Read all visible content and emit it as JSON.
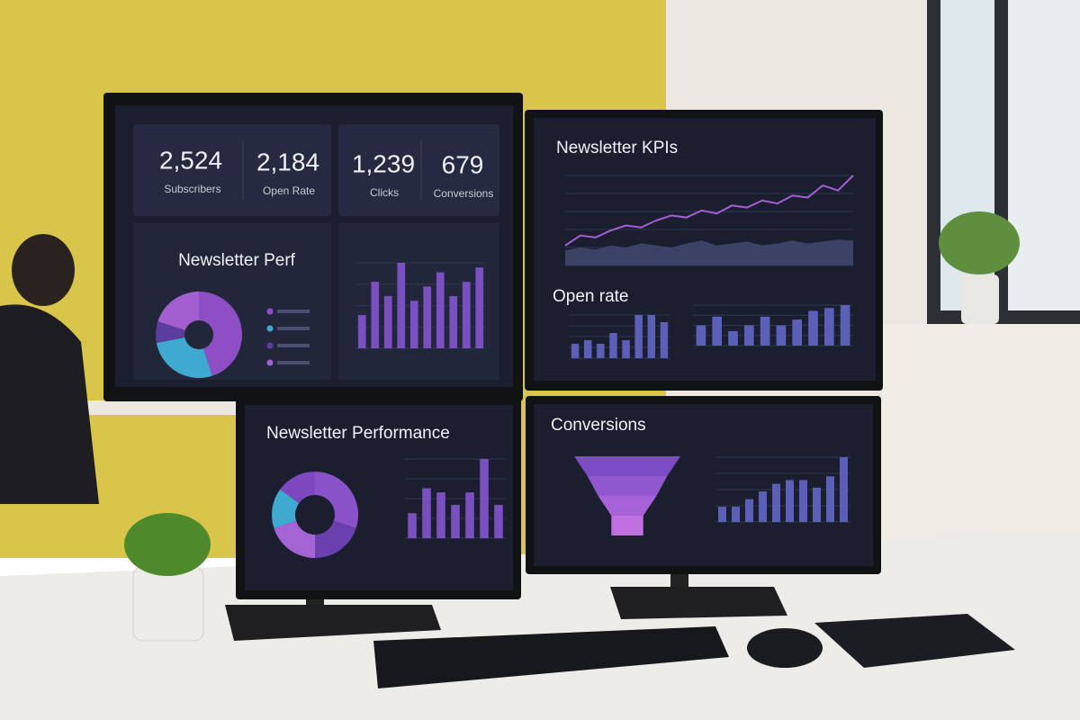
{
  "top_left": {
    "kpis": [
      {
        "value": "2,524",
        "label": "Subscribers"
      },
      {
        "value": "2,184",
        "label": "Open Rate"
      },
      {
        "value": "1,239",
        "label": "Clicks"
      },
      {
        "value": "679",
        "label": "Conversions"
      }
    ],
    "pie_title": "Newsletter Perf",
    "pie": {
      "values": [
        45,
        27,
        8,
        20
      ],
      "colors": [
        "#8e4fc6",
        "#3fa9cf",
        "#5a3d9e",
        "#a35fd0"
      ]
    },
    "bars": {
      "values": [
        35,
        70,
        55,
        90,
        50,
        65,
        80,
        55,
        70,
        85
      ],
      "color": "#7a4fc0"
    }
  },
  "top_right": {
    "title": "Newsletter KPIs",
    "line": {
      "values": [
        20,
        30,
        28,
        35,
        40,
        38,
        45,
        50,
        48,
        55,
        52,
        60,
        58,
        65,
        62,
        70,
        68,
        80,
        75,
        90
      ],
      "color": "#a35fd6"
    },
    "area": {
      "values": [
        15,
        18,
        16,
        20,
        18,
        22,
        20,
        18,
        22,
        25,
        20,
        22,
        24,
        20,
        22,
        25,
        22,
        24,
        26,
        25
      ],
      "color": "#3b4266"
    },
    "subtitle": "Open rate",
    "bars_left": {
      "values": [
        20,
        25,
        20,
        35,
        25,
        60,
        60,
        50
      ],
      "color": "#5b5fb8"
    },
    "bars_right": {
      "values": [
        35,
        50,
        25,
        35,
        50,
        35,
        45,
        60,
        65,
        70
      ],
      "color": "#5b5fb8"
    }
  },
  "bottom_left": {
    "title": "Newsletter Performance",
    "donut": {
      "values": [
        30,
        20,
        20,
        15,
        15
      ],
      "colors": [
        "#8a52c8",
        "#6a3fae",
        "#a564d4",
        "#3fa9cf",
        "#7d48bf"
      ]
    },
    "bars": {
      "values": [
        30,
        60,
        55,
        40,
        55,
        95,
        40
      ],
      "color": "#7a4fc0"
    }
  },
  "bottom_right": {
    "title": "Conversions",
    "funnel": {
      "values": [
        100,
        75,
        55,
        30
      ],
      "colors": [
        "#7b4cc4",
        "#9157cf",
        "#a862d8",
        "#bf6fe0"
      ]
    },
    "bars": {
      "values": [
        20,
        20,
        30,
        40,
        50,
        55,
        55,
        45,
        60,
        85
      ],
      "color": "#5b5fb8"
    }
  }
}
